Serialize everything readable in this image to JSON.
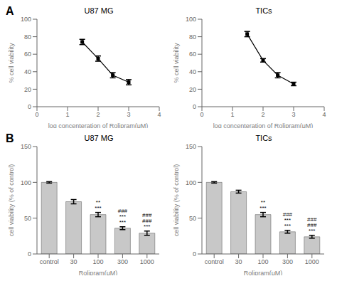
{
  "chart_data": [
    {
      "type": "line",
      "title": "U87 MG",
      "x": [
        1.48,
        2.0,
        2.48,
        3.0
      ],
      "values": [
        74,
        55,
        36,
        28
      ],
      "errors": [
        3,
        3,
        3,
        3
      ],
      "xlabel": "log concenteration of Rolipram(μM)",
      "ylabel": "% cell viability",
      "xlim": [
        0,
        4
      ],
      "ylim": [
        0,
        100
      ],
      "xticks": [
        0,
        1,
        2,
        3,
        4
      ],
      "yticks": [
        0,
        20,
        40,
        60,
        80,
        100
      ],
      "color": "#000000",
      "marker": "square",
      "annotations": [
        {
          "text": "A"
        }
      ]
    },
    {
      "type": "line",
      "title": "TICs",
      "x": [
        1.48,
        2.0,
        2.48,
        3.0
      ],
      "values": [
        83,
        53,
        36,
        26
      ],
      "errors": [
        3,
        2,
        3,
        2
      ],
      "xlabel": "log concenteration of Rolipram(μM)",
      "ylabel": "% cell viability",
      "xlim": [
        0,
        4
      ],
      "ylim": [
        0,
        100
      ],
      "xticks": [
        0,
        1,
        2,
        3,
        4
      ],
      "yticks": [
        0,
        20,
        40,
        60,
        80,
        100
      ],
      "color": "#000000",
      "marker": "square"
    },
    {
      "type": "bar",
      "title": "U87 MG",
      "categories": [
        "control",
        "30",
        "100",
        "300",
        "1000"
      ],
      "values": [
        100,
        73,
        55,
        36,
        29
      ],
      "errors": [
        1,
        3,
        3,
        2,
        3
      ],
      "xlabel": "Rolipram(μM)",
      "ylabel": "cell viability (% of control)",
      "ylim": [
        0,
        150
      ],
      "yticks": [
        0,
        50,
        100,
        150
      ],
      "color": "#c8c8c8",
      "annotations": [
        {
          "text": "B"
        },
        {
          "category": "100",
          "text": "**\n***"
        },
        {
          "category": "300",
          "text": "###\n***\n***"
        },
        {
          "category": "1000",
          "text": "###\n###\n***"
        }
      ]
    },
    {
      "type": "bar",
      "title": "TICs",
      "categories": [
        "control",
        "30",
        "100",
        "300",
        "1000"
      ],
      "values": [
        100,
        87,
        55,
        31,
        24
      ],
      "errors": [
        1,
        2,
        3,
        2,
        2
      ],
      "xlabel": "Rolipram(μM)",
      "ylabel": "cell viability (% of control)",
      "ylim": [
        0,
        150
      ],
      "yticks": [
        0,
        50,
        100,
        150
      ],
      "color": "#c8c8c8",
      "annotations": [
        {
          "category": "100",
          "text": "**\n***"
        },
        {
          "category": "300",
          "text": "###\n***\n***"
        },
        {
          "category": "1000",
          "text": "###\n###\n***"
        }
      ]
    }
  ]
}
